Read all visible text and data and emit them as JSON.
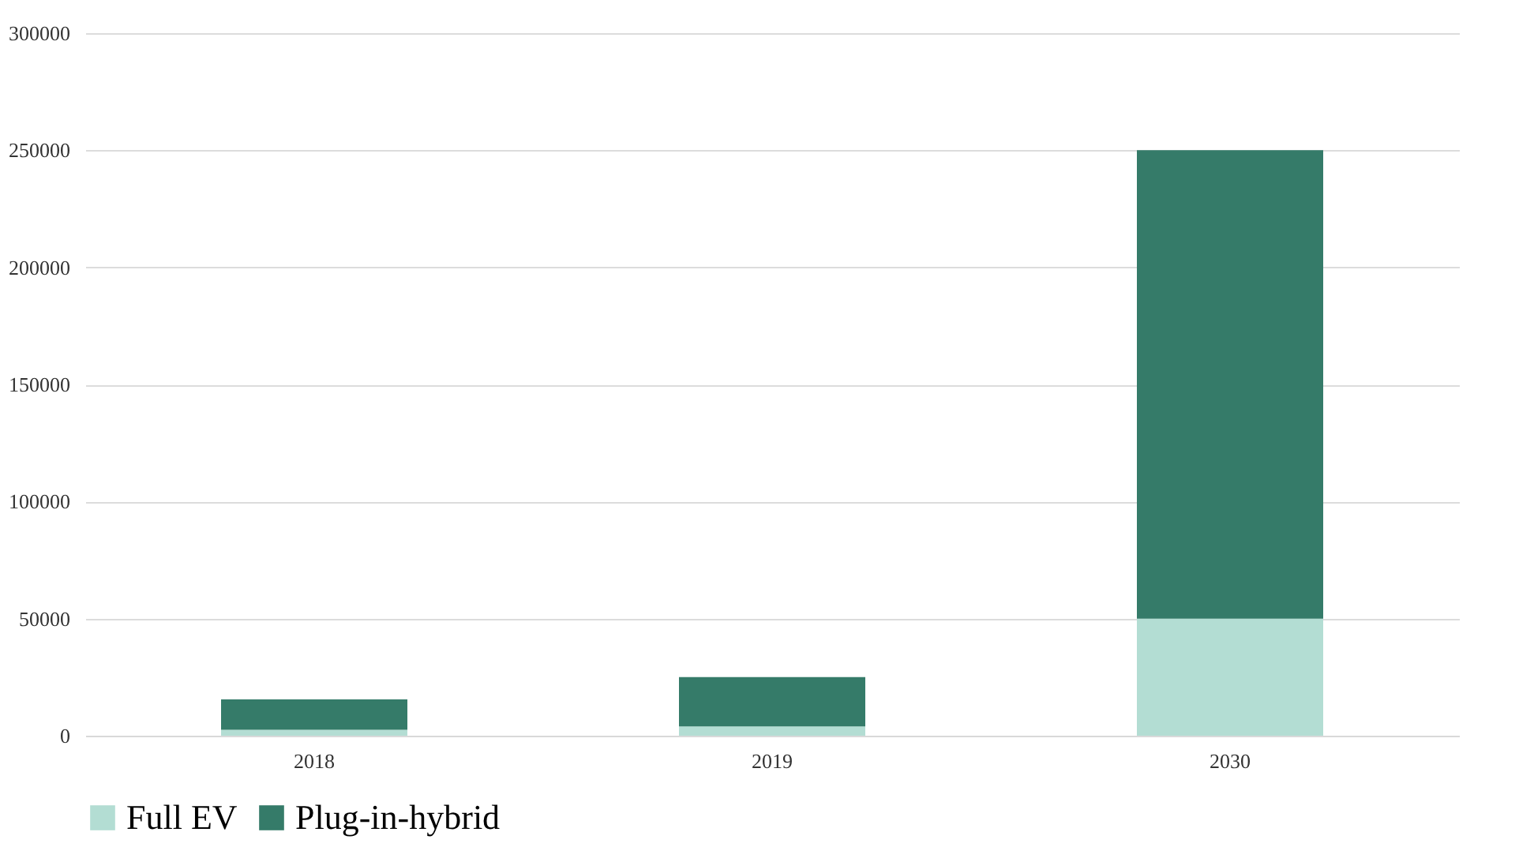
{
  "chart_data": {
    "type": "bar",
    "stacked": true,
    "categories": [
      "2018",
      "2019",
      "2030"
    ],
    "series": [
      {
        "name": "Full EV",
        "color": "#b3ddd3",
        "values": [
          2500,
          4000,
          50000
        ]
      },
      {
        "name": "Plug-in-hybrid",
        "color": "#357b69",
        "values": [
          13000,
          21000,
          200000
        ]
      }
    ],
    "ylim": [
      0,
      300000
    ],
    "yticks": [
      0,
      50000,
      100000,
      150000,
      200000,
      250000,
      300000
    ],
    "grid": "y",
    "legend": "bottom"
  }
}
